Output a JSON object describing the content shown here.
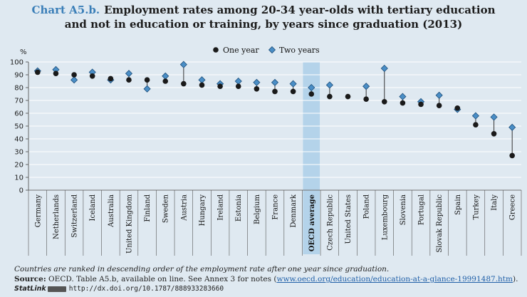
{
  "header": {
    "chart_id": "Chart A5.b.",
    "title_line1": "Employment rates among 20-34 year-olds with tertiary education",
    "title_line2": "and not in education or training, by years since graduation (2013)"
  },
  "footer": {
    "note": "Countries are ranked in descending order of the employment rate after one year since graduation.",
    "source_label": "Source:",
    "source_text": "OECD. Table A5.b, available on line. See Annex 3 for notes (",
    "source_link": "www.oecd.org/education/education-at-a-glance-19991487.htm",
    "source_end": ").",
    "statlink_label": "StatLink",
    "statlink_url": "http://dx.doi.org/10.1787/888933283660"
  },
  "colors": {
    "one_year": "#1a1a1a",
    "two_years": "#4a8ec6",
    "highlight_band": "#b4d3ea",
    "grid": "#ffffff",
    "connector": "#333333"
  },
  "chart_data": {
    "type": "scatter",
    "ylabel": "%",
    "ylim": [
      0,
      100
    ],
    "yticks": [
      0,
      10,
      20,
      30,
      40,
      50,
      60,
      70,
      80,
      90,
      100
    ],
    "legend_position": "top-right",
    "highlight_category": "OECD average",
    "categories": [
      "Germany",
      "Netherlands",
      "Switzerland",
      "Iceland",
      "Australia",
      "United Kingdom",
      "Finland",
      "Sweden",
      "Austria",
      "Hungary",
      "Ireland",
      "Estonia",
      "Belgium",
      "France",
      "Denmark",
      "OECD average",
      "Czech Republic",
      "United States",
      "Poland",
      "Luxembourg",
      "Slovenia",
      "Portugal",
      "Slovak Republic",
      "Spain",
      "Turkey",
      "Italy",
      "Greece"
    ],
    "series": [
      {
        "name": "One year",
        "marker": "circle",
        "values": [
          92,
          91,
          90,
          89,
          87,
          86,
          86,
          85,
          83,
          82,
          81,
          81,
          79,
          77,
          77,
          75,
          73,
          73,
          71,
          69,
          68,
          67,
          66,
          64,
          51,
          44,
          27
        ]
      },
      {
        "name": "Two years",
        "marker": "diamond",
        "values": [
          93,
          94,
          86,
          92,
          86,
          91,
          79,
          89,
          98,
          86,
          83,
          85,
          84,
          84,
          83,
          80,
          82,
          null,
          81,
          95,
          73,
          69,
          74,
          63,
          58,
          57,
          49
        ]
      }
    ]
  }
}
